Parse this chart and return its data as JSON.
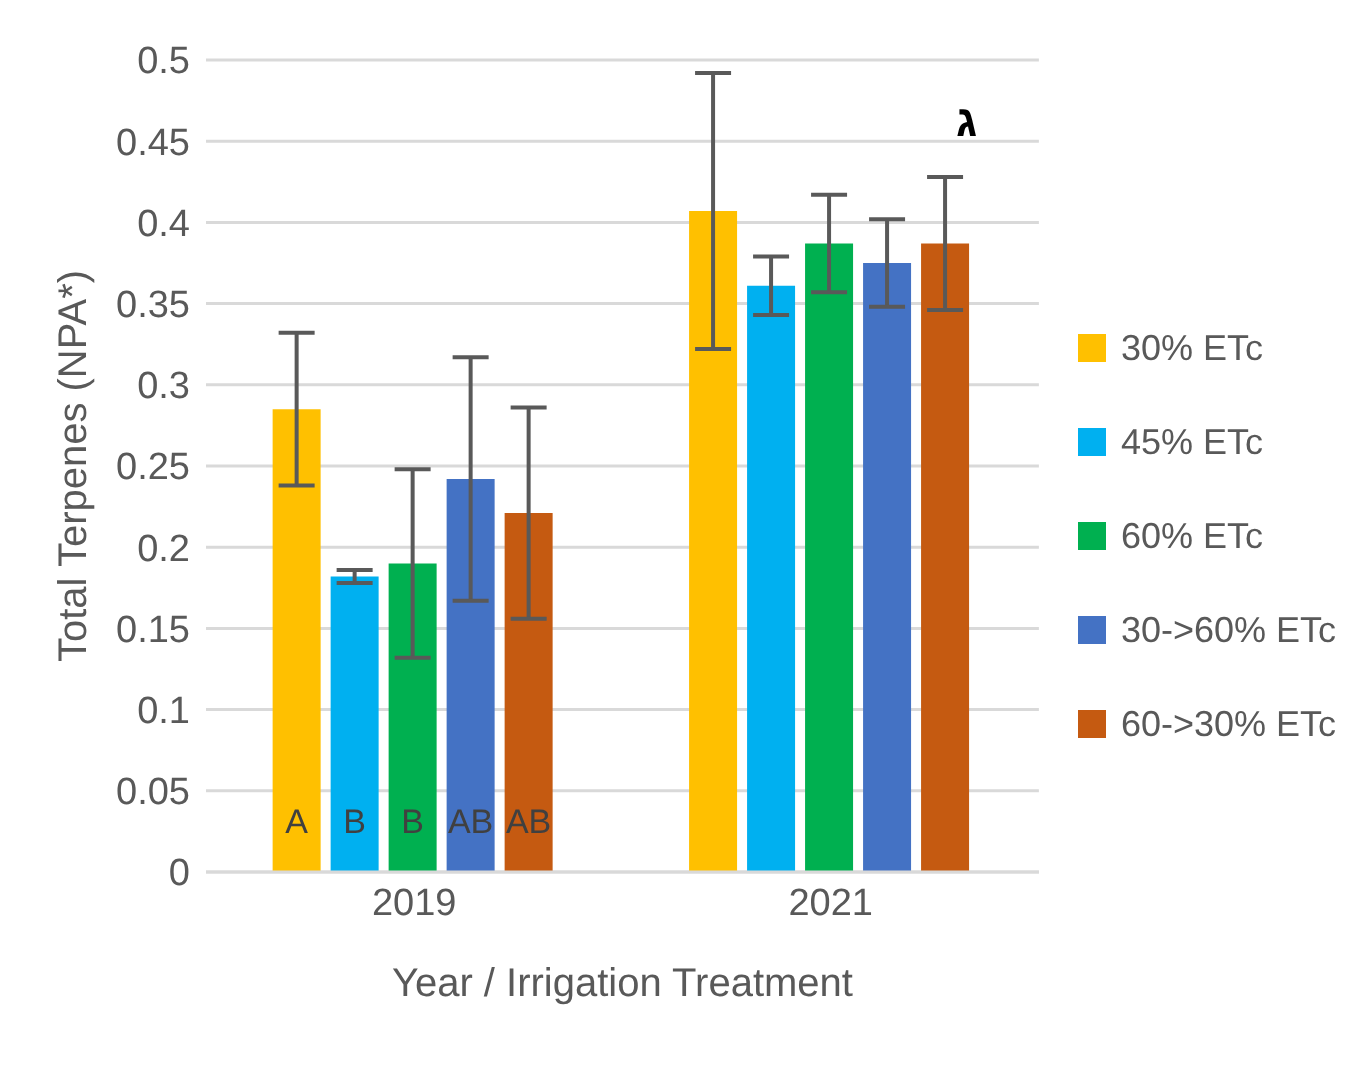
{
  "chart_data": {
    "type": "bar",
    "xlabel": "Year / Irrigation Treatment",
    "ylabel": "Total Terpenes (NPA*)",
    "categories": [
      "2019",
      "2021"
    ],
    "series": [
      {
        "name": "30% ETc",
        "color": "#ffc000",
        "values": [
          0.285,
          0.407
        ],
        "errors": [
          0.047,
          0.085
        ]
      },
      {
        "name": "45% ETc",
        "color": "#00b0f0",
        "values": [
          0.182,
          0.361
        ],
        "errors": [
          0.004,
          0.018
        ]
      },
      {
        "name": "60% ETc",
        "color": "#00b050",
        "values": [
          0.19,
          0.387
        ],
        "errors": [
          0.058,
          0.03
        ]
      },
      {
        "name": "30->60% ETc",
        "color": "#4472c4",
        "values": [
          0.242,
          0.375
        ],
        "errors": [
          0.075,
          0.027
        ]
      },
      {
        "name": "60->30% ETc",
        "color": "#c55a11",
        "values": [
          0.221,
          0.387
        ],
        "errors": [
          0.065,
          0.041
        ]
      }
    ],
    "ylim": [
      0,
      0.5
    ],
    "yticks": [
      0,
      0.05,
      0.1,
      0.15,
      0.2,
      0.25,
      0.3,
      0.35,
      0.4,
      0.45,
      0.5
    ],
    "grid": "y",
    "legend": "right",
    "annotations": [
      "A",
      "B",
      "B",
      "AB",
      "AB",
      "ג"
    ]
  }
}
